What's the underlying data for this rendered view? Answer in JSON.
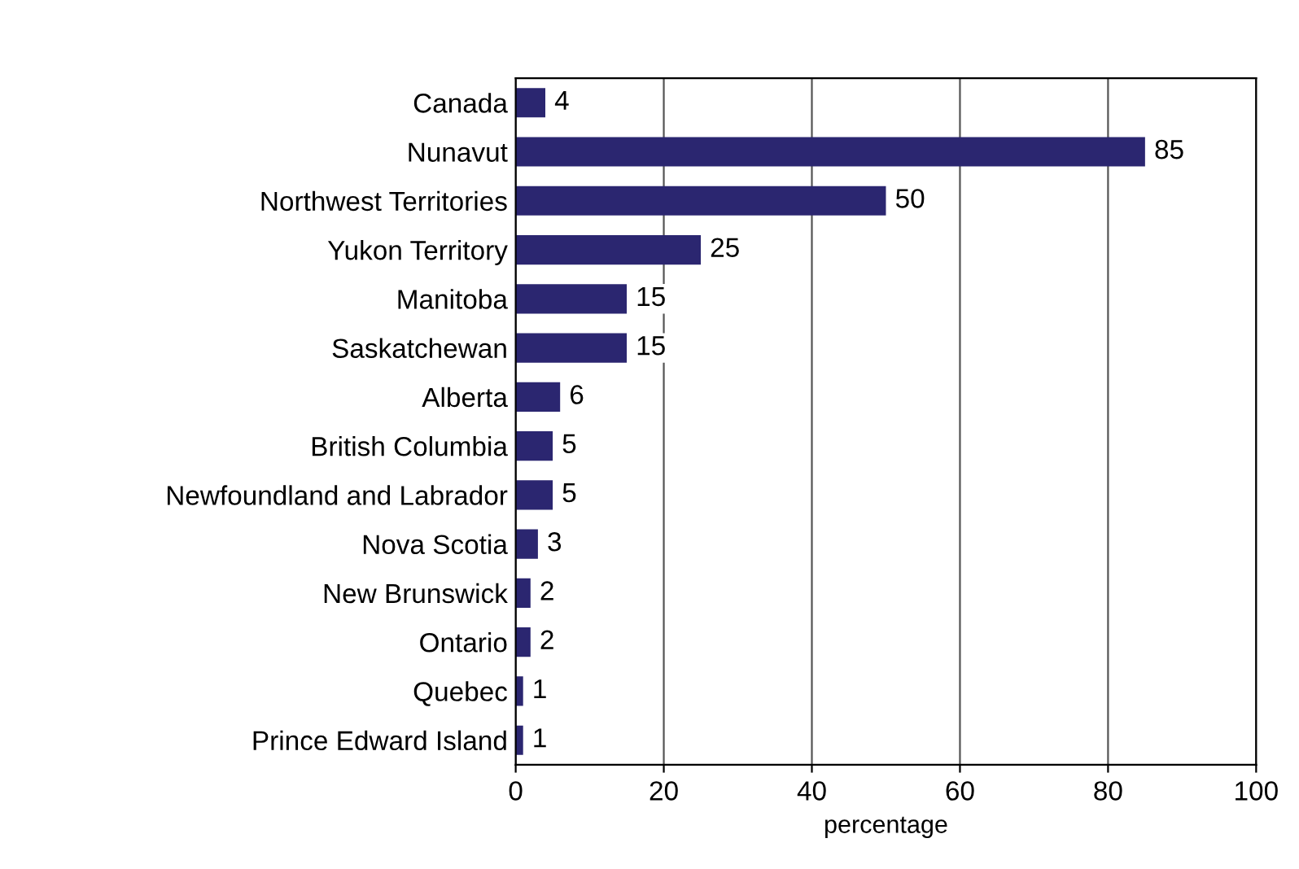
{
  "chart_data": {
    "type": "bar",
    "orientation": "horizontal",
    "xlabel": "percentage",
    "categories": [
      "Canada",
      "Nunavut",
      "Northwest Territories",
      "Yukon Territory",
      "Manitoba",
      "Saskatchewan",
      "Alberta",
      "British Columbia",
      "Newfoundland and Labrador",
      "Nova Scotia",
      "New Brunswick",
      "Ontario",
      "Quebec",
      "Prince Edward Island"
    ],
    "values": [
      4,
      85,
      50,
      25,
      15,
      15,
      6,
      5,
      5,
      3,
      2,
      2,
      1,
      1
    ],
    "color": "#2b2670",
    "data_labels": true,
    "xlim": [
      0,
      100
    ],
    "xticks": [
      0,
      20,
      40,
      60,
      80,
      100
    ],
    "grid": "x",
    "legend": false
  }
}
